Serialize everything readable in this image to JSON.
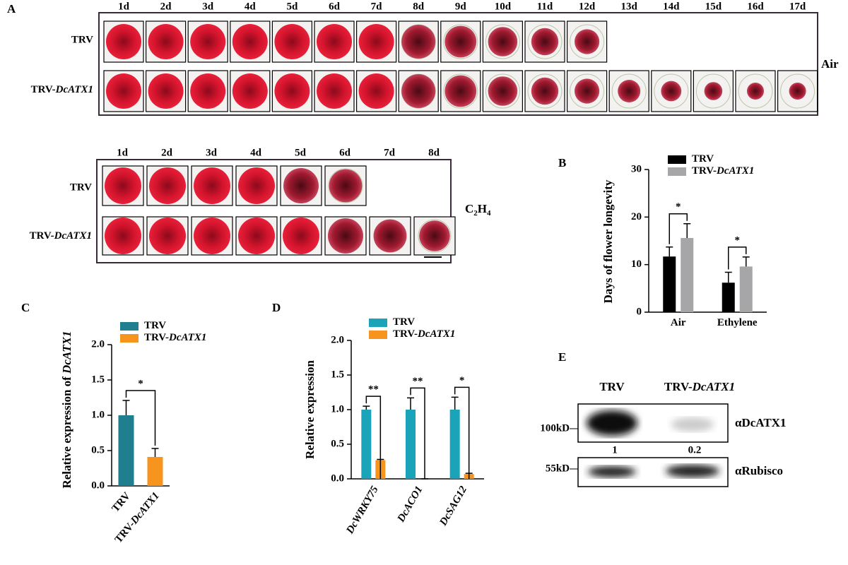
{
  "panel_a": {
    "label": "A",
    "air": {
      "days": [
        "1d",
        "2d",
        "3d",
        "4d",
        "5d",
        "6d",
        "7d",
        "8d",
        "9d",
        "10d",
        "11d",
        "12d",
        "13d",
        "14d",
        "15d",
        "16d",
        "17d"
      ],
      "rows": [
        "TRV",
        "TRV-DcATX1"
      ],
      "condition": "Air"
    },
    "ethylene": {
      "days": [
        "1d",
        "2d",
        "3d",
        "4d",
        "5d",
        "6d",
        "7d",
        "8d"
      ],
      "rows": [
        "TRV",
        "TRV-DcATX1"
      ],
      "condition": "C2H4"
    }
  },
  "chart_data": [
    {
      "type": "bar",
      "panel": "B",
      "ylabel": "Days of flower longevity",
      "categories": [
        "Air",
        "Ethylene"
      ],
      "series": [
        {
          "name": "TRV",
          "color": "#000000",
          "values": [
            11.7,
            6.2
          ],
          "errors": [
            2.0,
            2.2
          ]
        },
        {
          "name": "TRV-DcATX1",
          "color": "#a6a6a8",
          "values": [
            15.6,
            9.6
          ],
          "errors": [
            3.0,
            2.0
          ]
        }
      ],
      "annotations": [
        "*",
        "*"
      ],
      "ylim": [
        0,
        30
      ],
      "yticks": [
        0,
        10,
        20,
        30
      ]
    },
    {
      "type": "bar",
      "panel": "C",
      "ylabel": "Relative expression of DcATX1",
      "categories": [
        "TRV",
        "TRV-DcATX1"
      ],
      "series": [
        {
          "name": "TRV",
          "color": "#1f7f8e",
          "values": [
            1.0,
            null
          ],
          "errors": [
            0.21,
            null
          ]
        },
        {
          "name": "TRV-DcATX1",
          "color": "#f7941d",
          "values": [
            null,
            0.41
          ],
          "errors": [
            null,
            0.12
          ]
        }
      ],
      "annotations": [
        "*"
      ],
      "ylim": [
        0,
        2
      ],
      "yticks": [
        {
          "value": 0,
          "label": "0.0"
        },
        0.5,
        {
          "value": 1,
          "label": "1.0"
        },
        1.5,
        {
          "value": 2,
          "label": "2.0"
        }
      ]
    },
    {
      "type": "bar",
      "panel": "D",
      "ylabel": "Relative expression",
      "categories": [
        "DcWRKY75",
        "DcACO1",
        "DcSAG12"
      ],
      "series": [
        {
          "name": "TRV",
          "color": "#1ba3b9",
          "values": [
            1.0,
            1.0,
            1.0
          ],
          "errors": [
            0.05,
            0.17,
            0.18
          ]
        },
        {
          "name": "TRV-DcATX1",
          "color": "#f7941d",
          "values": [
            0.27,
            0,
            0.07
          ],
          "errors": [
            0.01,
            0,
            0.01
          ]
        }
      ],
      "annotations": [
        "**",
        "**",
        "*"
      ],
      "ylim": [
        0,
        2
      ],
      "yticks": [
        {
          "value": 0,
          "label": "0.0"
        },
        0.5,
        {
          "value": 1,
          "label": "1.0"
        },
        1.5,
        {
          "value": 2,
          "label": "2.0"
        }
      ]
    }
  ],
  "panel_e": {
    "label": "E",
    "lanes": [
      "TRV",
      "TRV-DcATX1"
    ],
    "blots": [
      {
        "marker": "100kD",
        "antibody": "αDcATX1"
      },
      {
        "marker": "55kD",
        "antibody": "αRubisco"
      }
    ],
    "quantification": [
      1,
      0.2
    ]
  }
}
